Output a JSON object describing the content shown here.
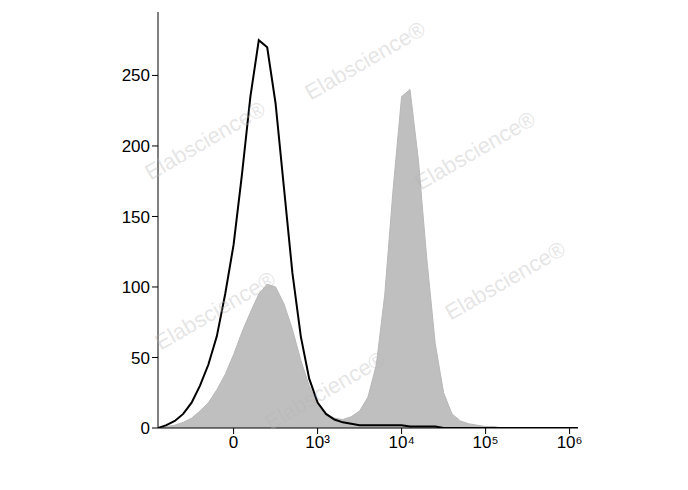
{
  "chart_data": {
    "type": "area",
    "x": [
      -0.9,
      -0.8,
      -0.7,
      -0.6,
      -0.5,
      -0.4,
      -0.3,
      -0.2,
      -0.1,
      0,
      0.1,
      0.2,
      0.3,
      0.4,
      0.5,
      0.6,
      0.7,
      0.8,
      0.9,
      1.0,
      1.1,
      1.2,
      1.3,
      1.4,
      1.5,
      1.6,
      1.7,
      1.8,
      1.9,
      2.0,
      2.1,
      2.2,
      2.3,
      2.4,
      2.5,
      2.6,
      2.7,
      2.8,
      2.9,
      3.0,
      3.1,
      3.2,
      3.3,
      3.4,
      3.5,
      3.6,
      3.7,
      3.8,
      3.9,
      4.0,
      4.1
    ],
    "xlim": [
      -0.9,
      4.1
    ],
    "xticks": [
      0,
      {
        "value": 1,
        "label": "10³"
      },
      {
        "value": 2,
        "label": "10⁴"
      },
      {
        "value": 3,
        "label": "10⁵"
      },
      {
        "value": 4,
        "label": "10⁶"
      }
    ],
    "ylim": [
      0,
      295
    ],
    "yticks": [
      0,
      50,
      100,
      150,
      200,
      250
    ],
    "grid": false,
    "annotations": [
      "Elabscience®"
    ],
    "series": [
      {
        "type": "area",
        "color": "#b8b8b8",
        "values": [
          0,
          1,
          2,
          4,
          7,
          12,
          18,
          27,
          38,
          52,
          68,
          82,
          95,
          102,
          100,
          88,
          70,
          48,
          30,
          17,
          10,
          7,
          6,
          8,
          12,
          22,
          45,
          95,
          170,
          235,
          240,
          190,
          120,
          60,
          25,
          10,
          5,
          3,
          2,
          1,
          1,
          0,
          0,
          0,
          0,
          0,
          0,
          0,
          0,
          0,
          0
        ]
      },
      {
        "type": "line",
        "color": "#000000",
        "values": [
          0,
          2,
          5,
          10,
          18,
          30,
          45,
          65,
          95,
          130,
          180,
          235,
          275,
          270,
          230,
          170,
          110,
          65,
          35,
          18,
          10,
          6,
          4,
          3,
          2,
          2,
          2,
          2,
          2,
          2,
          1,
          1,
          1,
          1,
          0,
          0,
          0,
          0,
          0,
          0,
          0,
          0,
          0,
          0,
          0,
          0,
          0,
          0,
          0,
          0,
          0
        ]
      }
    ]
  }
}
